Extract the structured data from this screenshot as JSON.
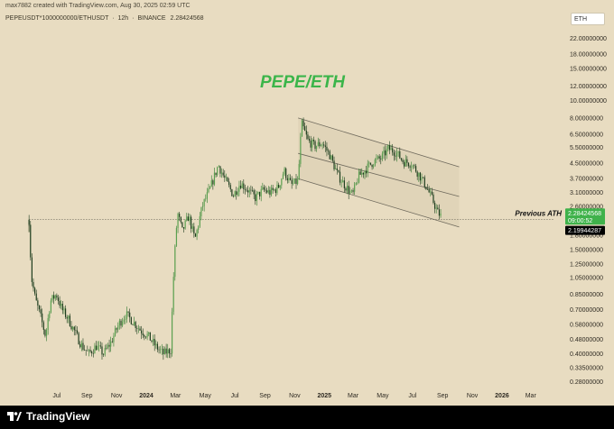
{
  "header": {
    "creator_text": "max7882 created with TradingView.com, Aug 30, 2025 02:59 UTC",
    "symbol": "PEPEUSDT*1000000000/ETHUSDT",
    "interval": "12h",
    "exchange": "BINANCE",
    "last_value": "2.28424568",
    "separator": "·"
  },
  "price_scale": {
    "label": "ETH",
    "current_price_tag": "2.28424568",
    "countdown_tag": "09:00:52",
    "ath_price_tag": "2.19944287"
  },
  "footer": {
    "brand": "TradingView"
  },
  "colors": {
    "background": "#e8dcc1",
    "candle_green": "#2f7a2f",
    "candle_dark": "#1e3d1e",
    "title_green": "#3bb54a",
    "channel_fill": "#ddd0b3",
    "price_tag_green": "#3fb24b",
    "ath_tag": "#000000"
  },
  "chart_data": {
    "type": "candlestick",
    "title": "PEPE/ETH",
    "y_scale": "log",
    "ylim": [
      0.26,
      26.0
    ],
    "y_ticks": [
      "22.00000000",
      "18.00000000",
      "15.00000000",
      "12.00000000",
      "10.00000000",
      "8.00000000",
      "6.50000000",
      "5.50000000",
      "4.50000000",
      "3.70000000",
      "3.10000000",
      "2.60000000",
      "1.80000000",
      "1.50000000",
      "1.25000000",
      "1.05000000",
      "0.85000000",
      "0.70000000",
      "0.58000000",
      "0.48000000",
      "0.40000000",
      "0.33500000",
      "0.28000000"
    ],
    "x_ticks": [
      {
        "label": "Jul",
        "date": "2023-07-01",
        "bold": false
      },
      {
        "label": "Sep",
        "date": "2023-09-01",
        "bold": false
      },
      {
        "label": "Nov",
        "date": "2023-11-01",
        "bold": false
      },
      {
        "label": "2024",
        "date": "2024-01-01",
        "bold": true
      },
      {
        "label": "Mar",
        "date": "2024-03-01",
        "bold": false
      },
      {
        "label": "May",
        "date": "2024-05-01",
        "bold": false
      },
      {
        "label": "Jul",
        "date": "2024-07-01",
        "bold": false
      },
      {
        "label": "Sep",
        "date": "2024-09-01",
        "bold": false
      },
      {
        "label": "Nov",
        "date": "2024-11-01",
        "bold": false
      },
      {
        "label": "2025",
        "date": "2025-01-01",
        "bold": true
      },
      {
        "label": "Mar",
        "date": "2025-03-01",
        "bold": false
      },
      {
        "label": "May",
        "date": "2025-05-01",
        "bold": false
      },
      {
        "label": "Jul",
        "date": "2025-07-01",
        "bold": false
      },
      {
        "label": "Sep",
        "date": "2025-09-01",
        "bold": false
      },
      {
        "label": "Nov",
        "date": "2025-11-01",
        "bold": false
      },
      {
        "label": "2026",
        "date": "2026-01-01",
        "bold": true
      },
      {
        "label": "Mar",
        "date": "2026-03-01",
        "bold": false
      }
    ],
    "xlim": [
      "2023-05-01",
      "2026-04-15"
    ],
    "series": [
      {
        "name": "PEPEUSDT*1000000000/ETHUSDT",
        "points": [
          {
            "date": "2023-05-05",
            "value": 2.19
          },
          {
            "date": "2023-05-10",
            "value": 1.05
          },
          {
            "date": "2023-05-18",
            "value": 0.8
          },
          {
            "date": "2023-05-28",
            "value": 0.65
          },
          {
            "date": "2023-06-08",
            "value": 0.5
          },
          {
            "date": "2023-06-18",
            "value": 0.78
          },
          {
            "date": "2023-06-30",
            "value": 0.85
          },
          {
            "date": "2023-07-12",
            "value": 0.7
          },
          {
            "date": "2023-07-25",
            "value": 0.62
          },
          {
            "date": "2023-08-08",
            "value": 0.52
          },
          {
            "date": "2023-08-22",
            "value": 0.44
          },
          {
            "date": "2023-09-05",
            "value": 0.4
          },
          {
            "date": "2023-09-20",
            "value": 0.44
          },
          {
            "date": "2023-10-05",
            "value": 0.4
          },
          {
            "date": "2023-10-20",
            "value": 0.46
          },
          {
            "date": "2023-11-05",
            "value": 0.58
          },
          {
            "date": "2023-11-20",
            "value": 0.66
          },
          {
            "date": "2023-12-05",
            "value": 0.6
          },
          {
            "date": "2023-12-20",
            "value": 0.54
          },
          {
            "date": "2024-01-05",
            "value": 0.5
          },
          {
            "date": "2024-01-20",
            "value": 0.44
          },
          {
            "date": "2024-02-05",
            "value": 0.4
          },
          {
            "date": "2024-02-20",
            "value": 0.42
          },
          {
            "date": "2024-02-27",
            "value": 1.25
          },
          {
            "date": "2024-03-05",
            "value": 2.4
          },
          {
            "date": "2024-03-15",
            "value": 1.9
          },
          {
            "date": "2024-03-28",
            "value": 2.3
          },
          {
            "date": "2024-04-10",
            "value": 1.7
          },
          {
            "date": "2024-04-25",
            "value": 2.6
          },
          {
            "date": "2024-05-10",
            "value": 3.2
          },
          {
            "date": "2024-05-28",
            "value": 4.4
          },
          {
            "date": "2024-06-12",
            "value": 3.6
          },
          {
            "date": "2024-06-28",
            "value": 3.0
          },
          {
            "date": "2024-07-12",
            "value": 3.5
          },
          {
            "date": "2024-07-28",
            "value": 3.2
          },
          {
            "date": "2024-08-12",
            "value": 2.9
          },
          {
            "date": "2024-08-28",
            "value": 3.2
          },
          {
            "date": "2024-09-12",
            "value": 3.1
          },
          {
            "date": "2024-09-28",
            "value": 3.3
          },
          {
            "date": "2024-10-10",
            "value": 4.1
          },
          {
            "date": "2024-10-25",
            "value": 3.4
          },
          {
            "date": "2024-11-08",
            "value": 3.6
          },
          {
            "date": "2024-11-15",
            "value": 7.5
          },
          {
            "date": "2024-11-28",
            "value": 6.0
          },
          {
            "date": "2024-12-12",
            "value": 5.6
          },
          {
            "date": "2024-12-28",
            "value": 5.8
          },
          {
            "date": "2025-01-12",
            "value": 5.0
          },
          {
            "date": "2025-01-28",
            "value": 3.9
          },
          {
            "date": "2025-02-12",
            "value": 3.4
          },
          {
            "date": "2025-02-28",
            "value": 3.0
          },
          {
            "date": "2025-03-12",
            "value": 3.8
          },
          {
            "date": "2025-03-28",
            "value": 4.2
          },
          {
            "date": "2025-04-12",
            "value": 4.6
          },
          {
            "date": "2025-04-28",
            "value": 4.8
          },
          {
            "date": "2025-05-12",
            "value": 5.4
          },
          {
            "date": "2025-05-28",
            "value": 5.2
          },
          {
            "date": "2025-06-12",
            "value": 4.6
          },
          {
            "date": "2025-06-28",
            "value": 4.5
          },
          {
            "date": "2025-07-12",
            "value": 4.0
          },
          {
            "date": "2025-07-28",
            "value": 3.4
          },
          {
            "date": "2025-08-12",
            "value": 2.8
          },
          {
            "date": "2025-08-22",
            "value": 2.4
          },
          {
            "date": "2025-08-30",
            "value": 2.28
          }
        ]
      }
    ],
    "channel": {
      "upper": [
        {
          "date": "2024-11-08",
          "value": 8.0
        },
        {
          "date": "2025-10-05",
          "value": 4.3
        }
      ],
      "middle": [
        {
          "date": "2024-11-08",
          "value": 5.1
        },
        {
          "date": "2025-10-05",
          "value": 2.95
        }
      ],
      "lower": [
        {
          "date": "2024-11-08",
          "value": 3.7
        },
        {
          "date": "2025-10-05",
          "value": 2.0
        }
      ]
    },
    "annotations": [
      {
        "text": "Previous ATH",
        "value": 2.19944287,
        "from_date": "2023-05-05"
      }
    ],
    "grid": false,
    "legend": "none"
  }
}
